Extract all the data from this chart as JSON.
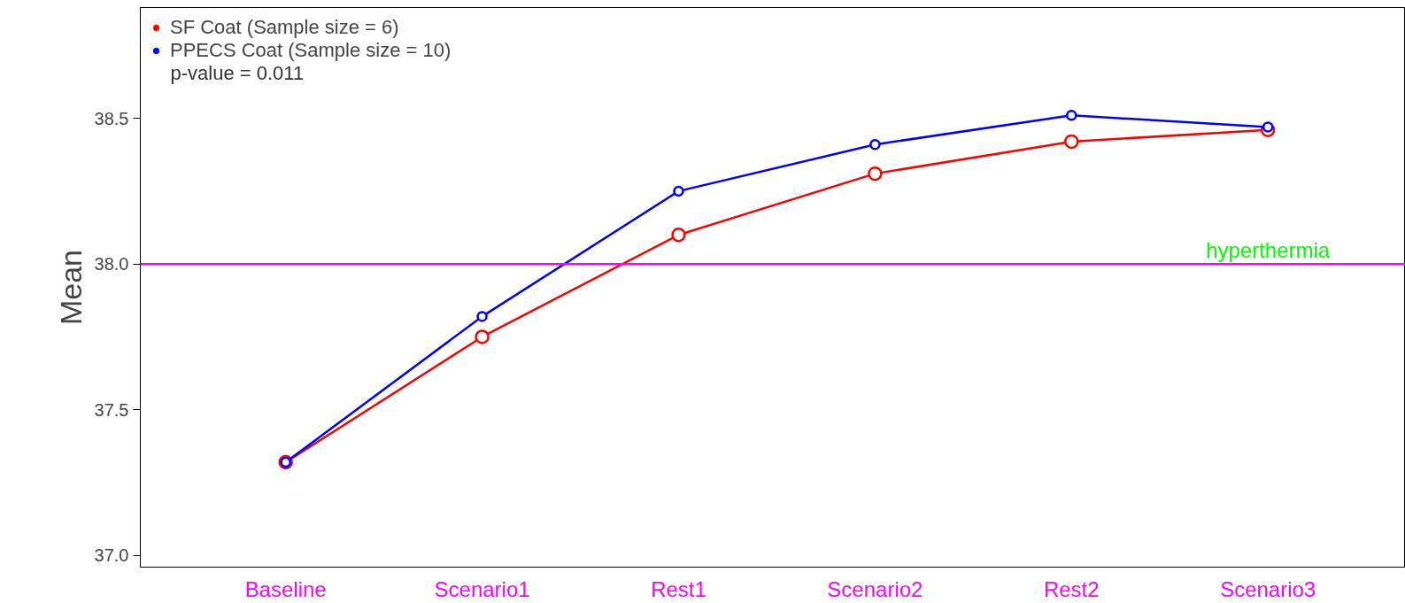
{
  "chart_data": {
    "type": "line",
    "ylabel": "Mean",
    "categories": [
      "Baseline",
      "Scenario1",
      "Rest1",
      "Scenario2",
      "Rest2",
      "Scenario3"
    ],
    "series": [
      {
        "name": "SF Coat (Sample size = 6)",
        "color": "#ff0000",
        "values": [
          37.32,
          37.75,
          38.1,
          38.31,
          38.42,
          38.46
        ]
      },
      {
        "name": "PPECS Coat (Sample size = 10)",
        "color": "#0000ff",
        "values": [
          37.32,
          37.82,
          38.25,
          38.41,
          38.51,
          38.47
        ]
      }
    ],
    "annotations": [
      "p-value = 0.011"
    ],
    "ref_lines": [
      {
        "axis": "y",
        "value": 38.0,
        "label": "hyperthermia",
        "color": "#ff00ff"
      }
    ],
    "ylim": [
      36.96,
      38.88
    ],
    "yticks": [
      {
        "value": 37,
        "label": "37.0"
      },
      37.5,
      {
        "value": 38,
        "label": "38.0"
      },
      38.5
    ],
    "marker": "circle",
    "line_style": "solid",
    "grid": false,
    "legend": "top left"
  }
}
